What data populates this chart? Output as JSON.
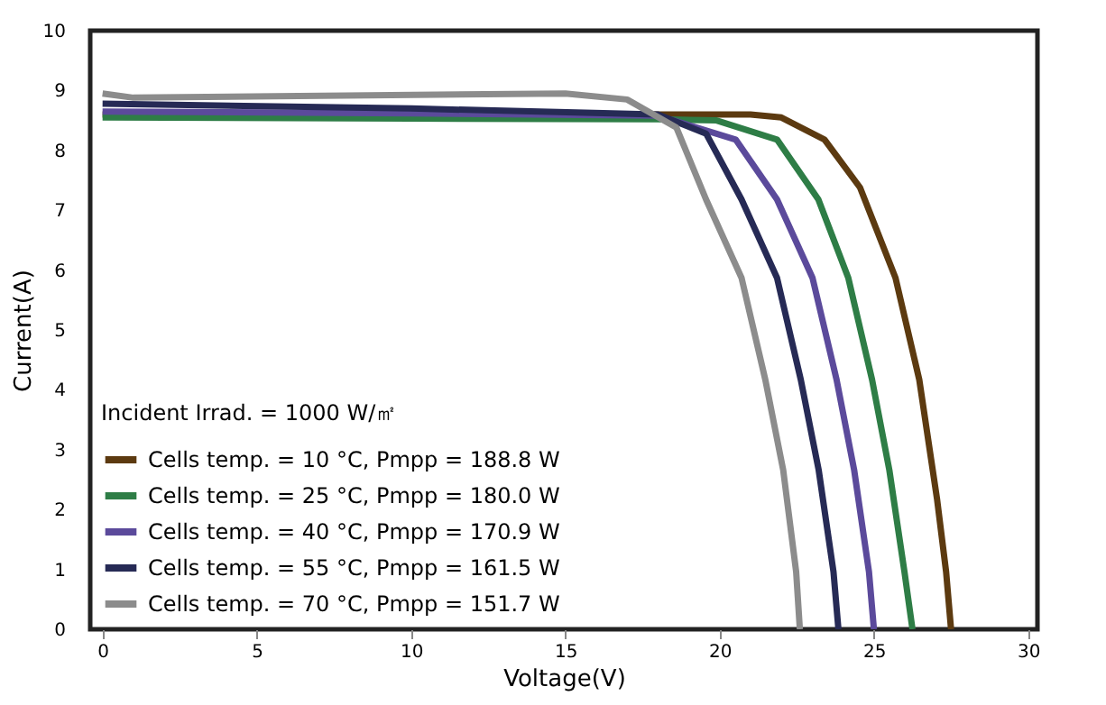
{
  "chart_data": {
    "type": "line",
    "xlabel": "Voltage(V)",
    "ylabel": "Current(A)",
    "legend_title": "Incident Irrad. = 1000 W/㎡",
    "legend": "bottom left",
    "grid": false,
    "marker": "none",
    "line_style": "solid",
    "xlim": [
      -0.4,
      30.3
    ],
    "xticks": [
      0,
      5,
      10,
      15,
      20,
      25,
      30
    ],
    "ylim": [
      0,
      10
    ],
    "yticks": [
      0,
      1,
      2,
      3,
      4,
      5,
      6,
      7,
      8,
      9,
      10
    ],
    "series": [
      {
        "name": "Cells temp. = 10 °C,  Pmpp = 188.8 W",
        "color": "#5c3a10",
        "x": [
          0,
          10,
          18,
          21,
          22,
          23.4,
          24.55,
          25.7,
          26.47,
          27.05,
          27.34,
          27.5
        ],
        "values": [
          8.6,
          8.6,
          8.6,
          8.6,
          8.55,
          8.18,
          7.38,
          5.87,
          4.17,
          2.16,
          0.96,
          0
        ]
      },
      {
        "name": "Cells temp. = 25 °C,  Pmpp = 180.0 W",
        "color": "#2e7d46",
        "x": [
          0,
          10,
          18,
          19.9,
          21.86,
          23.2,
          24.17,
          24.94,
          25.5,
          25.99,
          26.25
        ],
        "values": [
          8.55,
          8.53,
          8.52,
          8.5,
          8.18,
          7.18,
          5.87,
          4.17,
          2.66,
          0.96,
          0
        ]
      },
      {
        "name": "Cells temp. = 40 °C,  Pmpp = 170.9 W",
        "color": "#5b4a9b",
        "x": [
          0,
          10,
          18,
          20.52,
          21.86,
          23.01,
          23.79,
          24.36,
          24.84,
          25
        ],
        "values": [
          8.65,
          8.62,
          8.58,
          8.18,
          7.18,
          5.87,
          4.17,
          2.66,
          0.96,
          0
        ]
      },
      {
        "name": "Cells temp. = 55 °C,  Pmpp = 161.5 W",
        "color": "#262a55",
        "x": [
          0,
          10,
          18,
          19.56,
          20.71,
          21.86,
          22.63,
          23.21,
          23.69,
          23.85
        ],
        "values": [
          8.78,
          8.7,
          8.6,
          8.28,
          7.18,
          5.87,
          4.17,
          2.66,
          0.96,
          0
        ]
      },
      {
        "name": "Cells temp. = 70 °C,  Pmpp = 151.7 W",
        "color": "#8c8c8c",
        "x": [
          0,
          1,
          15,
          17,
          18.6,
          19.56,
          20.71,
          21.48,
          22.06,
          22.48,
          22.6
        ],
        "values": [
          8.95,
          8.88,
          8.95,
          8.85,
          8.38,
          7.18,
          5.87,
          4.17,
          2.66,
          0.96,
          0
        ]
      }
    ]
  }
}
